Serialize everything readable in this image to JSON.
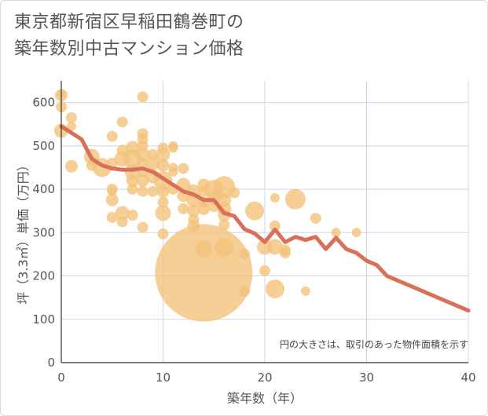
{
  "title_line1": "東京都新宿区早稲田鶴巻町の",
  "title_line2": "築年数別中古マンション価格",
  "note": "円の大きさは、取引のあった物件面積を示す",
  "colors": {
    "bubble": "#f4c27a",
    "line": "#d9705a",
    "grid": "#c9d8e8",
    "axis": "#333333"
  },
  "chart_data": {
    "type": "scatter",
    "xlabel": "築年数（年）",
    "ylabel": "坪（3.3㎡）単価（万円）",
    "xlim": [
      0,
      40
    ],
    "ylim": [
      0,
      650
    ],
    "xticks": [
      "0",
      "10",
      "20",
      "30",
      "40"
    ],
    "yticks": [
      "0",
      "100",
      "200",
      "300",
      "400",
      "500",
      "600"
    ],
    "bubbles": [
      {
        "x": 0,
        "y": 620,
        "r": 5
      },
      {
        "x": 0,
        "y": 617,
        "r": 8
      },
      {
        "x": 0,
        "y": 590,
        "r": 7
      },
      {
        "x": 0,
        "y": 535,
        "r": 9
      },
      {
        "x": 1,
        "y": 565,
        "r": 7
      },
      {
        "x": 1,
        "y": 545,
        "r": 6
      },
      {
        "x": 1,
        "y": 453,
        "r": 8
      },
      {
        "x": 3,
        "y": 475,
        "r": 10
      },
      {
        "x": 3,
        "y": 455,
        "r": 7
      },
      {
        "x": 4,
        "y": 450,
        "r": 12
      },
      {
        "x": 5,
        "y": 522,
        "r": 7
      },
      {
        "x": 5,
        "y": 460,
        "r": 7
      },
      {
        "x": 5,
        "y": 400,
        "r": 7
      },
      {
        "x": 5,
        "y": 395,
        "r": 6
      },
      {
        "x": 5,
        "y": 375,
        "r": 8
      },
      {
        "x": 5,
        "y": 335,
        "r": 7
      },
      {
        "x": 6,
        "y": 555,
        "r": 7
      },
      {
        "x": 6,
        "y": 490,
        "r": 7
      },
      {
        "x": 6,
        "y": 470,
        "r": 10
      },
      {
        "x": 6,
        "y": 345,
        "r": 9
      },
      {
        "x": 6,
        "y": 325,
        "r": 7
      },
      {
        "x": 7,
        "y": 495,
        "r": 9
      },
      {
        "x": 7,
        "y": 470,
        "r": 12
      },
      {
        "x": 7,
        "y": 440,
        "r": 10
      },
      {
        "x": 7,
        "y": 420,
        "r": 8
      },
      {
        "x": 7,
        "y": 400,
        "r": 7
      },
      {
        "x": 7,
        "y": 340,
        "r": 7
      },
      {
        "x": 8,
        "y": 613,
        "r": 7
      },
      {
        "x": 8,
        "y": 528,
        "r": 7
      },
      {
        "x": 8,
        "y": 515,
        "r": 7
      },
      {
        "x": 8,
        "y": 500,
        "r": 7
      },
      {
        "x": 8,
        "y": 480,
        "r": 9
      },
      {
        "x": 8,
        "y": 460,
        "r": 7
      },
      {
        "x": 8,
        "y": 440,
        "r": 7
      },
      {
        "x": 8,
        "y": 420,
        "r": 8
      },
      {
        "x": 8,
        "y": 395,
        "r": 7
      },
      {
        "x": 8,
        "y": 312,
        "r": 7
      },
      {
        "x": 9,
        "y": 480,
        "r": 7
      },
      {
        "x": 9,
        "y": 460,
        "r": 9
      },
      {
        "x": 9,
        "y": 430,
        "r": 9
      },
      {
        "x": 9,
        "y": 395,
        "r": 7
      },
      {
        "x": 10,
        "y": 495,
        "r": 7
      },
      {
        "x": 10,
        "y": 480,
        "r": 9
      },
      {
        "x": 10,
        "y": 455,
        "r": 8
      },
      {
        "x": 10,
        "y": 420,
        "r": 12
      },
      {
        "x": 10,
        "y": 395,
        "r": 8
      },
      {
        "x": 10,
        "y": 370,
        "r": 7
      },
      {
        "x": 10,
        "y": 345,
        "r": 10
      },
      {
        "x": 10,
        "y": 297,
        "r": 7
      },
      {
        "x": 11,
        "y": 500,
        "r": 6
      },
      {
        "x": 11,
        "y": 495,
        "r": 6
      },
      {
        "x": 11,
        "y": 450,
        "r": 6
      },
      {
        "x": 11,
        "y": 440,
        "r": 6
      },
      {
        "x": 11,
        "y": 400,
        "r": 7
      },
      {
        "x": 12,
        "y": 448,
        "r": 7
      },
      {
        "x": 12,
        "y": 410,
        "r": 9
      },
      {
        "x": 12,
        "y": 385,
        "r": 8
      },
      {
        "x": 12,
        "y": 355,
        "r": 7
      },
      {
        "x": 13,
        "y": 395,
        "r": 9
      },
      {
        "x": 13,
        "y": 375,
        "r": 9
      },
      {
        "x": 13,
        "y": 350,
        "r": 8
      },
      {
        "x": 13,
        "y": 330,
        "r": 7
      },
      {
        "x": 13,
        "y": 315,
        "r": 8
      },
      {
        "x": 14,
        "y": 410,
        "r": 8
      },
      {
        "x": 14,
        "y": 395,
        "r": 7
      },
      {
        "x": 14,
        "y": 370,
        "r": 7
      },
      {
        "x": 14,
        "y": 355,
        "r": 8
      },
      {
        "x": 14,
        "y": 262,
        "r": 11
      },
      {
        "x": 14,
        "y": 207,
        "r": 62
      },
      {
        "x": 15,
        "y": 400,
        "r": 12
      },
      {
        "x": 15,
        "y": 380,
        "r": 9
      },
      {
        "x": 15,
        "y": 360,
        "r": 7
      },
      {
        "x": 16,
        "y": 405,
        "r": 14
      },
      {
        "x": 16,
        "y": 375,
        "r": 9
      },
      {
        "x": 16,
        "y": 355,
        "r": 9
      },
      {
        "x": 16,
        "y": 340,
        "r": 8
      },
      {
        "x": 16,
        "y": 318,
        "r": 7
      },
      {
        "x": 16,
        "y": 265,
        "r": 12
      },
      {
        "x": 17,
        "y": 392,
        "r": 7
      },
      {
        "x": 18,
        "y": 250,
        "r": 7
      },
      {
        "x": 18,
        "y": 165,
        "r": 7
      },
      {
        "x": 19,
        "y": 350,
        "r": 12
      },
      {
        "x": 20,
        "y": 267,
        "r": 10
      },
      {
        "x": 20,
        "y": 212,
        "r": 7
      },
      {
        "x": 21,
        "y": 380,
        "r": 6
      },
      {
        "x": 21,
        "y": 315,
        "r": 7
      },
      {
        "x": 21,
        "y": 267,
        "r": 10
      },
      {
        "x": 21,
        "y": 170,
        "r": 12
      },
      {
        "x": 22,
        "y": 260,
        "r": 7
      },
      {
        "x": 22,
        "y": 253,
        "r": 7
      },
      {
        "x": 23,
        "y": 377,
        "r": 13
      },
      {
        "x": 24,
        "y": 165,
        "r": 6
      },
      {
        "x": 25,
        "y": 333,
        "r": 7
      },
      {
        "x": 27,
        "y": 300,
        "r": 6
      },
      {
        "x": 29,
        "y": 300,
        "r": 6
      }
    ],
    "series": [
      {
        "x": [
          0,
          1,
          2,
          3,
          4,
          5,
          6,
          7,
          8,
          9,
          10,
          11,
          12,
          13,
          14,
          15,
          16,
          17,
          18,
          19,
          20,
          21,
          22,
          23,
          24,
          25,
          26,
          27,
          28,
          29,
          30,
          31,
          32,
          40
        ],
        "values": [
          545,
          530,
          515,
          470,
          455,
          448,
          445,
          445,
          448,
          440,
          425,
          410,
          395,
          388,
          375,
          375,
          345,
          338,
          308,
          298,
          278,
          307,
          278,
          290,
          283,
          290,
          262,
          288,
          262,
          253,
          235,
          225,
          200,
          120
        ]
      }
    ]
  }
}
